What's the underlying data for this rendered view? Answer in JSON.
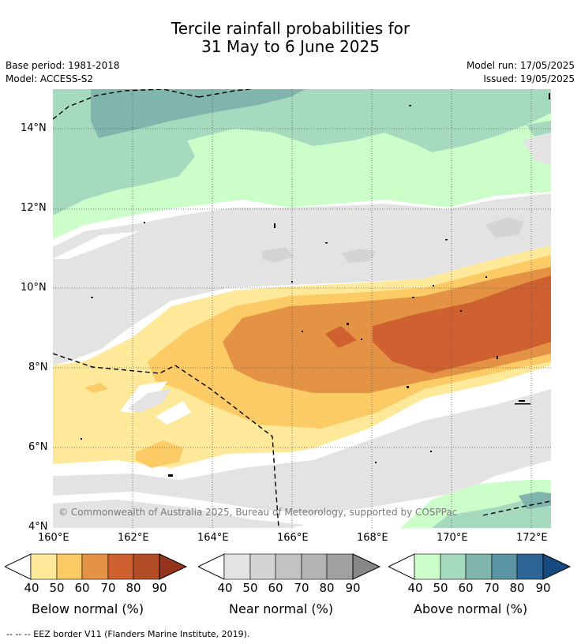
{
  "title": {
    "line1": "Tercile rainfall probabilities for",
    "line2": "31 May to 6 June 2025"
  },
  "meta": {
    "base_period": "Base period: 1981-2018",
    "model": "Model: ACCESS-S2",
    "model_run": "Model run: 17/05/2025",
    "issued": "Issued: 19/05/2025"
  },
  "map": {
    "x_ticks": [
      "160°E",
      "162°E",
      "164°E",
      "166°E",
      "168°E",
      "170°E",
      "172°E"
    ],
    "y_ticks": [
      "14°N",
      "12°N",
      "10°N",
      "8°N",
      "6°N",
      "4°N"
    ],
    "copyright": "© Commonwealth of Australia 2025, Bureau of Meteorology, supported by COSPPac",
    "colors": {
      "below": [
        "#fee99a",
        "#fdcb65",
        "#e49345",
        "#cf6131",
        "#b34d28",
        "#96331c"
      ],
      "near": [
        "#e3e3e3",
        "#d4d4d4",
        "#c3c3c3",
        "#b3b3b3",
        "#a0a0a0",
        "#888888"
      ],
      "above": [
        "#ccfec9",
        "#a6dabf",
        "#7fb5ac",
        "#5b94a3",
        "#2e6597",
        "#174a80"
      ]
    }
  },
  "legends": {
    "below": {
      "title": "Below normal (%)",
      "ticks": [
        "40",
        "50",
        "60",
        "70",
        "80",
        "90"
      ]
    },
    "near": {
      "title": "Near normal (%)",
      "ticks": [
        "40",
        "50",
        "60",
        "70",
        "80",
        "90"
      ]
    },
    "above": {
      "title": "Above normal (%)",
      "ticks": [
        "40",
        "50",
        "60",
        "70",
        "80",
        "90"
      ]
    }
  },
  "footer": "-- -- -- EEZ border V11 (Flanders Marine Institute, 2019)."
}
